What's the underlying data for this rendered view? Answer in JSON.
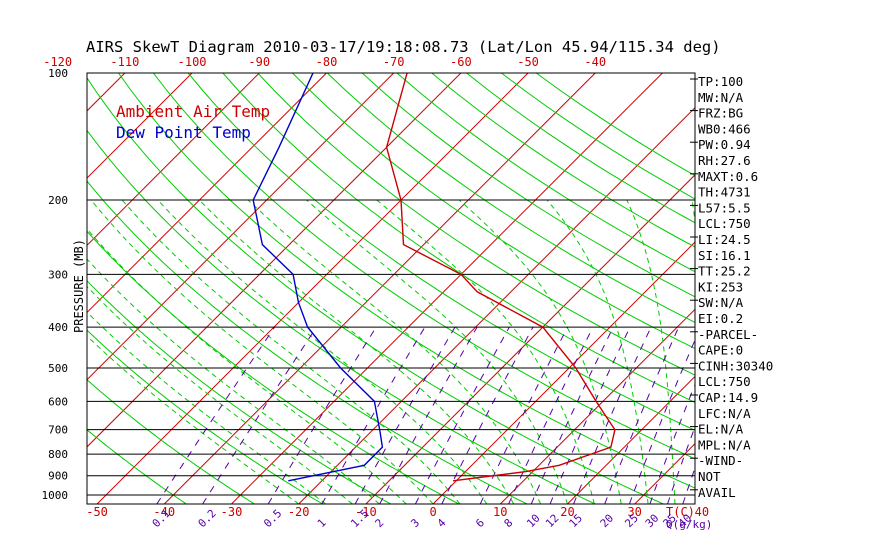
{
  "title": "AIRS SkewT Diagram 2010-03-17/19:18:08.73 (Lat/Lon 45.94/115.34 deg)",
  "legend": {
    "ambient_label": "Ambient Air Temp",
    "dewpoint_label": "Dew Point Temp"
  },
  "colors": {
    "ambient": "#cc0000",
    "dewpoint": "#0000cc",
    "isotherm": "#cc0000",
    "dry_adiabat": "#00cc00",
    "moist_adiabat": "#00cc00",
    "mixing_ratio": "#5500aa",
    "isobar": "#000000",
    "axis_text": "#cc0000"
  },
  "chart_data": {
    "type": "line",
    "title": "AIRS SkewT Diagram 2010-03-17/19:18:08.73 (Lat/Lon 45.94/115.34 deg)",
    "ylabel": "PRESSURE (MB)",
    "xlabel_bottom_end": "T(C)",
    "mixing_ratio_unit": "Q(g/kg)",
    "y_scale": "log",
    "ylim_mb": [
      1050,
      100
    ],
    "pressure_ticks": [
      "100",
      "200",
      "300",
      "400",
      "500",
      "600",
      "700",
      "800",
      "900",
      "1000"
    ],
    "pressure_tick_values": [
      100,
      200,
      300,
      400,
      500,
      600,
      700,
      800,
      900,
      1000
    ],
    "temp_ticks_bottom": [
      -50,
      -40,
      -30,
      -20,
      -10,
      0,
      10,
      20,
      30,
      40
    ],
    "temp_ticks_top": [
      -120,
      -110,
      -100,
      -90,
      -80,
      -70,
      -60,
      -50,
      -40
    ],
    "mixing_ratio_labels": [
      "0.1",
      "0.2",
      "0.5",
      "1",
      "1.5",
      "2",
      "3",
      "4",
      "6",
      "8",
      "10",
      "12",
      "15",
      "20",
      "25",
      "30",
      "35",
      "40"
    ],
    "mixing_ratio_values": [
      0.1,
      0.2,
      0.5,
      1,
      1.5,
      2,
      3,
      4,
      6,
      8,
      10,
      12,
      15,
      20,
      25,
      30,
      35,
      40
    ],
    "series": [
      {
        "name": "Ambient Air Temp",
        "pressure": [
          925,
          880,
          850,
          770,
          700,
          600,
          500,
          400,
          330,
          300,
          255,
          200,
          150,
          100
        ],
        "temperature": [
          -0.5,
          9,
          13,
          18,
          16,
          9,
          1,
          -10,
          -25,
          -30,
          -43,
          -50,
          -60,
          -68
        ]
      },
      {
        "name": "Dew Point Temp",
        "pressure": [
          925,
          900,
          850,
          770,
          700,
          600,
          500,
          400,
          350,
          300,
          255,
          200,
          150,
          100
        ],
        "temperature": [
          -25,
          -22,
          -16,
          -16,
          -19,
          -24,
          -34,
          -45,
          -50,
          -55,
          -64,
          -72,
          -76,
          -82
        ]
      }
    ]
  },
  "indices": [
    "TP:100",
    "MW:N/A",
    "FRZ:BG",
    "WB0:466",
    "PW:0.94",
    "RH:27.6",
    "MAXT:0.6",
    "TH:4731",
    "L57:5.5",
    "LCL:750",
    "LI:24.5",
    "SI:16.1",
    "TT:25.2",
    "KI:253",
    "SW:N/A",
    "EI:0.2",
    "-PARCEL-",
    "CAPE:0",
    "CINH:30340",
    "LCL:750",
    "CAP:14.9",
    "LFC:N/A",
    "EL:N/A",
    "MPL:N/A",
    "-WIND-",
    "NOT",
    "AVAIL"
  ]
}
